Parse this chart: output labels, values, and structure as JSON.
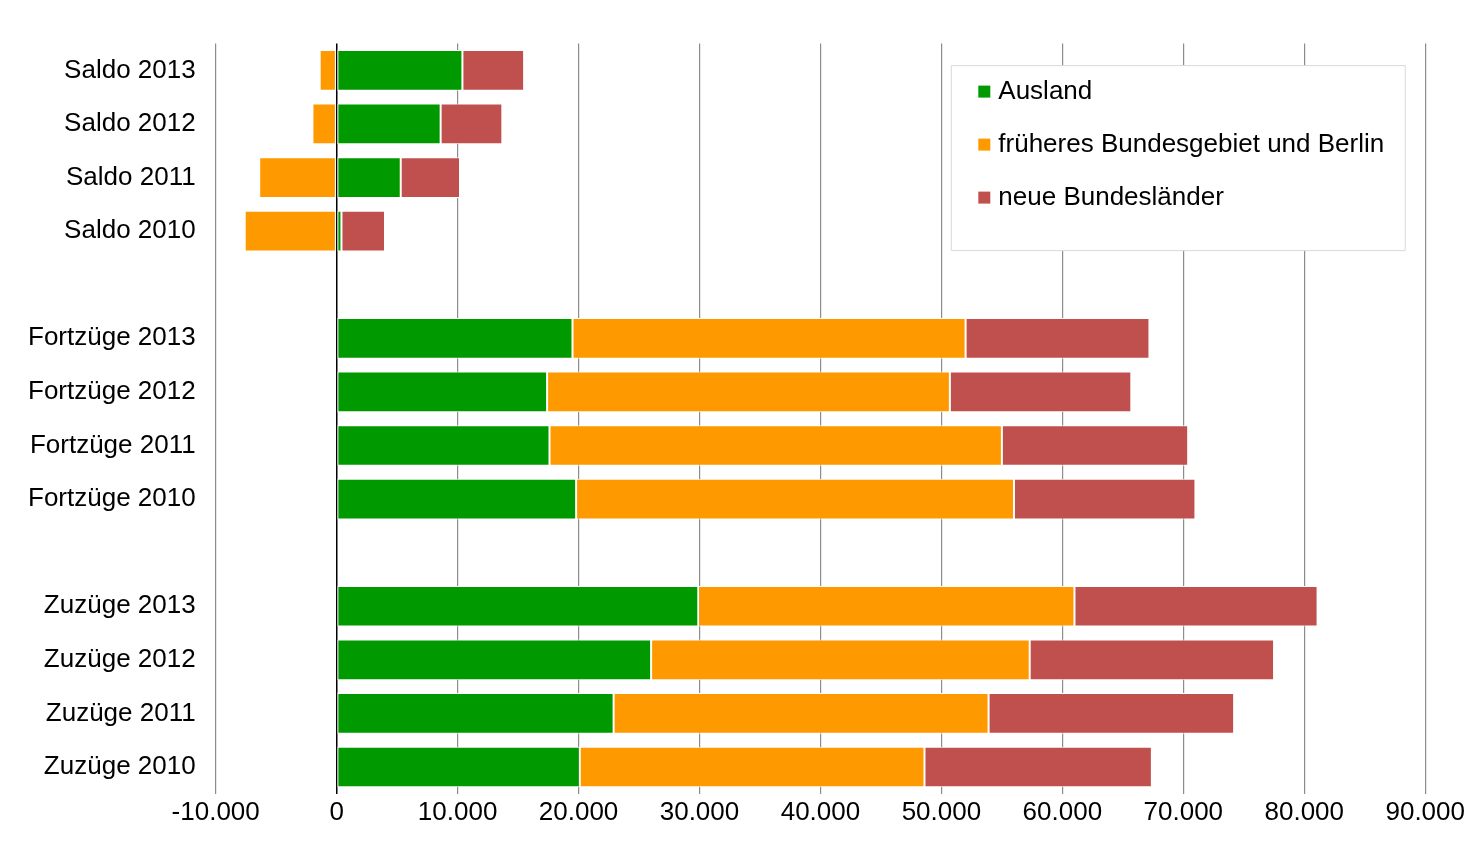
{
  "chart_data": {
    "type": "bar",
    "orientation": "horizontal",
    "stacked": true,
    "categories": [
      "Saldo 2013",
      "Saldo 2012",
      "Saldo 2011",
      "Saldo 2010",
      null,
      "Fortzüge 2013",
      "Fortzüge 2012",
      "Fortzüge 2011",
      "Fortzüge 2010",
      null,
      "Zuzüge 2013",
      "Zuzüge 2012",
      "Zuzüge 2011",
      "Zuzüge 2010"
    ],
    "series": [
      {
        "name": "Ausland",
        "color": "#009900",
        "values": [
          10400,
          8600,
          5300,
          400,
          null,
          19500,
          17400,
          17600,
          19800,
          null,
          29900,
          26000,
          22900,
          20100
        ]
      },
      {
        "name": "früheres Bundesgebiet und Berlin",
        "color": "#ff9900",
        "values": [
          -1400,
          -2000,
          -6400,
          -7600,
          null,
          32500,
          33300,
          37400,
          36200,
          null,
          31100,
          31300,
          31000,
          28500
        ]
      },
      {
        "name": "neue Bundesländer",
        "color": "#c0504d",
        "values": [
          5100,
          5100,
          4900,
          3600,
          null,
          15200,
          15000,
          15400,
          15000,
          null,
          20100,
          20200,
          20300,
          18800
        ]
      }
    ],
    "xlim": [
      -10000,
      90000
    ],
    "xticks": [
      {
        "value": -10000,
        "label": "-10.000"
      },
      0,
      {
        "value": 10000,
        "label": "10.000"
      },
      {
        "value": 20000,
        "label": "20.000"
      },
      {
        "value": 30000,
        "label": "30.000"
      },
      {
        "value": 40000,
        "label": "40.000"
      },
      {
        "value": 50000,
        "label": "50.000"
      },
      {
        "value": 60000,
        "label": "60.000"
      },
      {
        "value": 70000,
        "label": "70.000"
      },
      {
        "value": 80000,
        "label": "80.000"
      },
      {
        "value": 90000,
        "label": "90.000"
      }
    ],
    "grid": "x",
    "legend": "top right"
  }
}
